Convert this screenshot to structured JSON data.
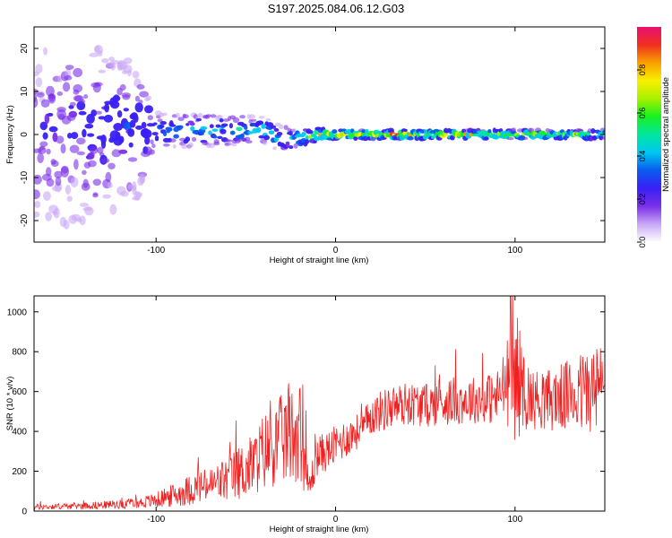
{
  "title": "S197.2025.084.06.12.G03",
  "colors": {
    "colormap": [
      "#ffffff",
      "#c9a8f5",
      "#7a2fe8",
      "#3a1ff5",
      "#0a5bf0",
      "#00c8f0",
      "#00e6a0",
      "#18f020",
      "#a8f000",
      "#f8f000",
      "#f8a000",
      "#f03020",
      "#e81070"
    ],
    "snr_line": "#f02020"
  },
  "chart_data": [
    {
      "type": "heatmap",
      "xlabel": "Height of straight line (km)",
      "ylabel": "Frequency (Hz)",
      "xlim": [
        -168,
        150
      ],
      "ylim": [
        -25,
        25
      ],
      "xticks": [
        "-100",
        "0",
        "100"
      ],
      "yticks": [
        "-20",
        "-10",
        "0",
        "10",
        "20"
      ],
      "colorbar": {
        "label": "Normalized spectral amplitude",
        "range": [
          0,
          1
        ],
        "ticks": [
          "0.0",
          "0.2",
          "0.4",
          "0.6",
          "0.8"
        ]
      },
      "ridge": {
        "x": [
          -168,
          -140,
          -110,
          -100,
          -80,
          -60,
          -40,
          -30,
          -20,
          -10,
          0,
          20,
          40,
          60,
          80,
          100,
          120,
          140,
          150
        ],
        "center_hz": [
          0,
          1,
          1,
          1,
          1,
          1,
          1,
          -1,
          -1,
          0,
          0,
          0,
          0,
          0,
          0,
          0,
          0,
          0,
          0
        ],
        "spread_hz": [
          24,
          22,
          16,
          4,
          4,
          3.5,
          3,
          3,
          2,
          1.5,
          1,
          1,
          1,
          1,
          1,
          1,
          1,
          1,
          1
        ],
        "peak_amplitude": [
          0.25,
          0.3,
          0.35,
          0.4,
          0.45,
          0.5,
          0.55,
          0.5,
          0.6,
          0.9,
          0.95,
          1,
          0.95,
          0.9,
          0.85,
          0.8,
          0.8,
          0.75,
          0.7
        ]
      }
    },
    {
      "type": "line",
      "xlabel": "Height of straight line (km)",
      "ylabel": "SNR (10 * v/v)",
      "xlim": [
        -168,
        150
      ],
      "ylim": [
        0,
        1080
      ],
      "xticks": [
        "-100",
        "0",
        "100"
      ],
      "yticks": [
        "0",
        "200",
        "400",
        "600",
        "800",
        "1000"
      ],
      "series": [
        {
          "x": [
            -168,
            -150,
            -130,
            -110,
            -100,
            -90,
            -80,
            -70,
            -60,
            -50,
            -45,
            -40,
            -35,
            -30,
            -25,
            -20,
            -15,
            -10,
            -5,
            0,
            5,
            10,
            15,
            20,
            30,
            40,
            50,
            60,
            70,
            80,
            90,
            95,
            100,
            105,
            110,
            120,
            130,
            140,
            150
          ],
          "y": [
            20,
            25,
            30,
            40,
            55,
            80,
            110,
            130,
            160,
            210,
            240,
            300,
            320,
            360,
            380,
            420,
            110,
            280,
            300,
            330,
            360,
            390,
            410,
            480,
            520,
            540,
            530,
            550,
            555,
            560,
            570,
            640,
            700,
            600,
            560,
            560,
            580,
            600,
            620
          ],
          "noise_amplitude": [
            15,
            15,
            20,
            25,
            40,
            60,
            80,
            90,
            120,
            150,
            160,
            200,
            200,
            230,
            250,
            260,
            80,
            100,
            100,
            100,
            100,
            90,
            90,
            100,
            110,
            110,
            110,
            120,
            120,
            120,
            140,
            200,
            360,
            200,
            150,
            160,
            180,
            220,
            240
          ]
        }
      ]
    }
  ]
}
